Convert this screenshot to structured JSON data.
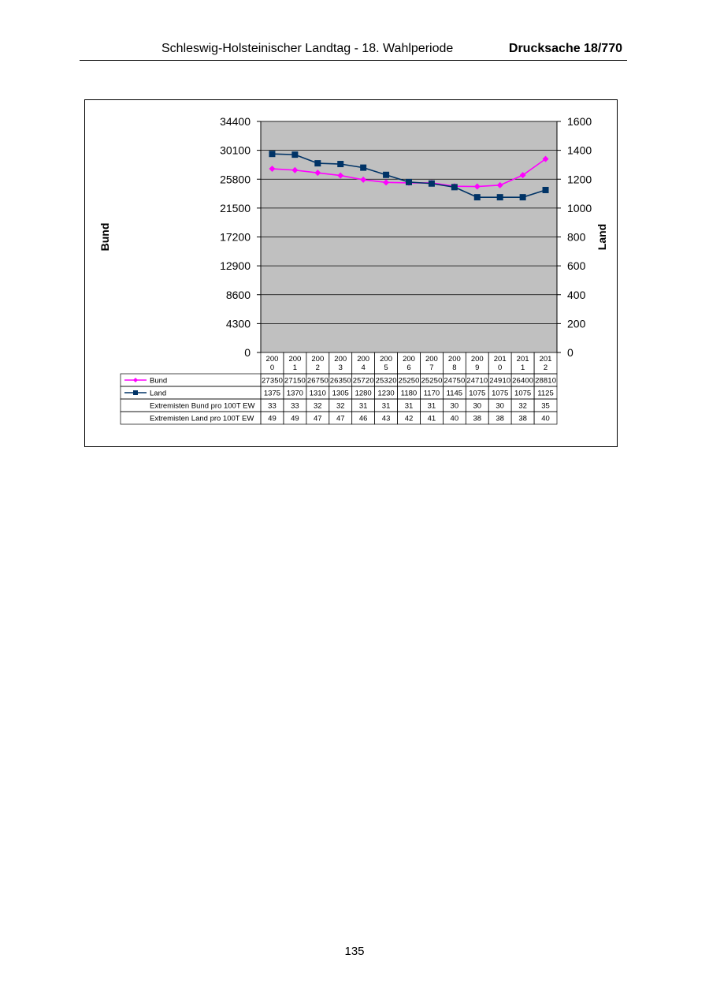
{
  "header": {
    "title": "Schleswig-Holsteinischer Landtag - 18. Wahlperiode",
    "document": "Drucksache 18/770"
  },
  "page_number": "135",
  "chart_data": {
    "type": "line",
    "categories": [
      "2000",
      "2001",
      "2002",
      "2003",
      "2004",
      "2005",
      "2006",
      "2007",
      "2008",
      "2009",
      "2010",
      "2011",
      "2012"
    ],
    "category_labels": [
      [
        "200",
        "0"
      ],
      [
        "200",
        "1"
      ],
      [
        "200",
        "2"
      ],
      [
        "200",
        "3"
      ],
      [
        "200",
        "4"
      ],
      [
        "200",
        "5"
      ],
      [
        "200",
        "6"
      ],
      [
        "200",
        "7"
      ],
      [
        "200",
        "8"
      ],
      [
        "200",
        "9"
      ],
      [
        "201",
        "0"
      ],
      [
        "201",
        "1"
      ],
      [
        "201",
        "2"
      ]
    ],
    "y_left": {
      "label": "Bund",
      "range": [
        0,
        34400
      ],
      "ticks": [
        "0",
        "4300",
        "8600",
        "12900",
        "17200",
        "21500",
        "25800",
        "30100",
        "34400"
      ]
    },
    "y_right": {
      "label": "Land",
      "range": [
        0,
        1600
      ],
      "ticks": [
        "0",
        "200",
        "400",
        "600",
        "800",
        "1000",
        "1200",
        "1400",
        "1600"
      ]
    },
    "grid": true,
    "plot_background": "#c0c0c0",
    "series": [
      {
        "name": "Bund",
        "axis": "left",
        "color": "#ff00ff",
        "marker": "diamond",
        "values": [
          27350,
          27150,
          26750,
          26350,
          25720,
          25320,
          25250,
          25250,
          24750,
          24710,
          24910,
          26400,
          28810
        ]
      },
      {
        "name": "Land",
        "axis": "right",
        "color": "#003366",
        "marker": "square",
        "values": [
          1375,
          1370,
          1310,
          1305,
          1280,
          1230,
          1180,
          1170,
          1145,
          1075,
          1075,
          1075,
          1125
        ]
      }
    ],
    "table_rows": [
      {
        "name": "Extremisten Bund pro 100T EW",
        "values": [
          "33",
          "33",
          "32",
          "32",
          "31",
          "31",
          "31",
          "31",
          "30",
          "30",
          "30",
          "32",
          "35"
        ]
      },
      {
        "name": "Extremisten Land pro 100T EW",
        "values": [
          "49",
          "49",
          "47",
          "47",
          "46",
          "43",
          "42",
          "41",
          "40",
          "38",
          "38",
          "38",
          "40"
        ]
      }
    ]
  }
}
